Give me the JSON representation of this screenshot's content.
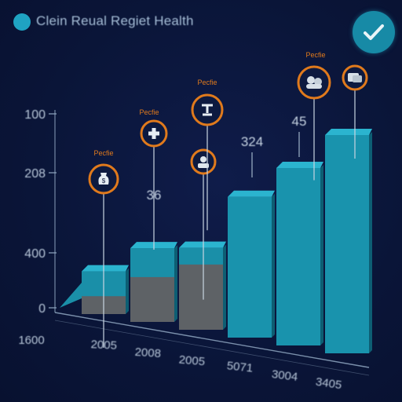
{
  "header": {
    "title": "Clein Reual Regiet Health"
  },
  "colors": {
    "accent": "#1fa3c2",
    "bar_gray": "#5e6266",
    "marker_ring": "#e07a1c",
    "axis": "#8fa6c0"
  },
  "icons": [
    "title-dot-icon",
    "checkmark-icon",
    "money-bag-icon",
    "plus-icon",
    "person-icon",
    "stethoscope-icon",
    "team-icon",
    "chat-icon"
  ],
  "chart_data": {
    "type": "bar",
    "title": "Clein Reual Regiet Health",
    "y_tick_labels": [
      "100",
      "208",
      "400",
      "0"
    ],
    "x_tick_labels": [
      "1600",
      "2005",
      "2008",
      "2005",
      "5071",
      "3004",
      "3405"
    ],
    "bars": [
      {
        "category": "2005",
        "total": 60,
        "gray_portion": 22
      },
      {
        "category": "2008",
        "total": 98,
        "gray_portion": 55
      },
      {
        "category": "2005",
        "total": 108,
        "gray_portion": 80
      },
      {
        "category": "5071",
        "total": 180,
        "gray_portion": 0
      },
      {
        "category": "3004",
        "total": 225,
        "gray_portion": 0
      },
      {
        "category": "3405",
        "total": 275,
        "gray_portion": 0
      }
    ],
    "data_labels": [
      {
        "bar": 1,
        "text": "36"
      },
      {
        "bar": 3,
        "text": "324"
      },
      {
        "bar": 4,
        "text": "45"
      }
    ],
    "markers": [
      {
        "label": "Pecfie",
        "icon": "money-bag-icon",
        "bar": 0
      },
      {
        "label": "Pecfie",
        "icon": "plus-icon",
        "bar": 1
      },
      {
        "label": "",
        "icon": "person-icon",
        "bar": 2
      },
      {
        "label": "Pecfie",
        "icon": "stethoscope-icon",
        "bar": 2
      },
      {
        "label": "Pecfie",
        "icon": "team-icon",
        "bar": 4
      },
      {
        "label": "",
        "icon": "chat-icon",
        "bar": 5
      }
    ]
  }
}
